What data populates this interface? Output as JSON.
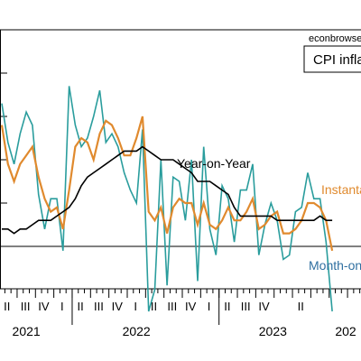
{
  "chart_data": {
    "type": "line",
    "credit": "econbrowse",
    "title": "CPI infla",
    "x_axis": {
      "quarter_labels": [
        "II",
        "III",
        "IV",
        "I",
        "II",
        "III",
        "IV",
        "I",
        "II",
        "III",
        "IV",
        "I",
        "II",
        "III",
        "IV",
        "II"
      ],
      "year_labels": [
        "2021",
        "2022",
        "2023",
        "202"
      ]
    },
    "series": [
      {
        "name": "Month-on-",
        "color": "#2a9d9d",
        "values": [
          3.3,
          2.4,
          1.9,
          2.6,
          3.1,
          2.8,
          1.2,
          0.4,
          1.1,
          1.1,
          -0.1,
          3.7,
          2.8,
          2.3,
          2.5,
          3.0,
          3.6,
          2.4,
          2.6,
          2.3,
          1.7,
          1.3,
          1.0,
          2.7,
          -1.5,
          -1.0,
          2.0,
          -0.9,
          1.6,
          1.5,
          0.6,
          2.0,
          -0.8,
          2.3,
          0.4,
          -0.2,
          1.4,
          1.1,
          0.1,
          1.3,
          1.3,
          1.9,
          -0.2,
          0.5,
          1.0,
          0.6,
          -0.3,
          -0.2,
          0.8,
          0.9,
          1.7,
          1.1,
          1.1,
          0.1,
          -1.5
        ]
      },
      {
        "name": "Instanta",
        "color": "#e08a2e",
        "values": [
          2.8,
          1.9,
          1.5,
          1.9,
          2.1,
          2.3,
          1.6,
          1.1,
          0.8,
          0.9,
          0.4,
          1.3,
          2.3,
          2.5,
          2.4,
          2.0,
          2.6,
          2.9,
          2.8,
          2.5,
          2.1,
          2.1,
          2.5,
          3.0,
          0.8,
          0.6,
          0.9,
          0.3,
          0.9,
          1.1,
          1.0,
          1.0,
          0.5,
          1.0,
          0.5,
          0.4,
          0.6,
          0.9,
          0.6,
          0.6,
          0.8,
          1.1,
          0.4,
          0.5,
          0.7,
          0.8,
          0.3,
          0.3,
          0.4,
          0.6,
          1.0,
          1.0,
          0.9,
          0.6,
          -0.1
        ]
      },
      {
        "name": "Year-on-Year",
        "color": "#000000",
        "values": [
          0.4,
          0.4,
          0.3,
          0.4,
          0.4,
          0.5,
          0.6,
          0.6,
          0.6,
          0.7,
          0.8,
          0.9,
          1.1,
          1.4,
          1.6,
          1.7,
          1.8,
          1.9,
          2.0,
          2.1,
          2.2,
          2.2,
          2.2,
          2.3,
          2.2,
          2.1,
          2.0,
          2.0,
          2.0,
          1.9,
          1.8,
          1.7,
          1.5,
          1.5,
          1.5,
          1.4,
          1.3,
          1.2,
          0.9,
          0.7,
          0.7,
          0.7,
          0.7,
          0.7,
          0.7,
          0.6,
          0.6,
          0.6,
          0.6,
          0.6,
          0.6,
          0.6,
          0.7,
          0.6,
          0.6
        ]
      }
    ],
    "grid": false,
    "legend": "inline text labels"
  }
}
